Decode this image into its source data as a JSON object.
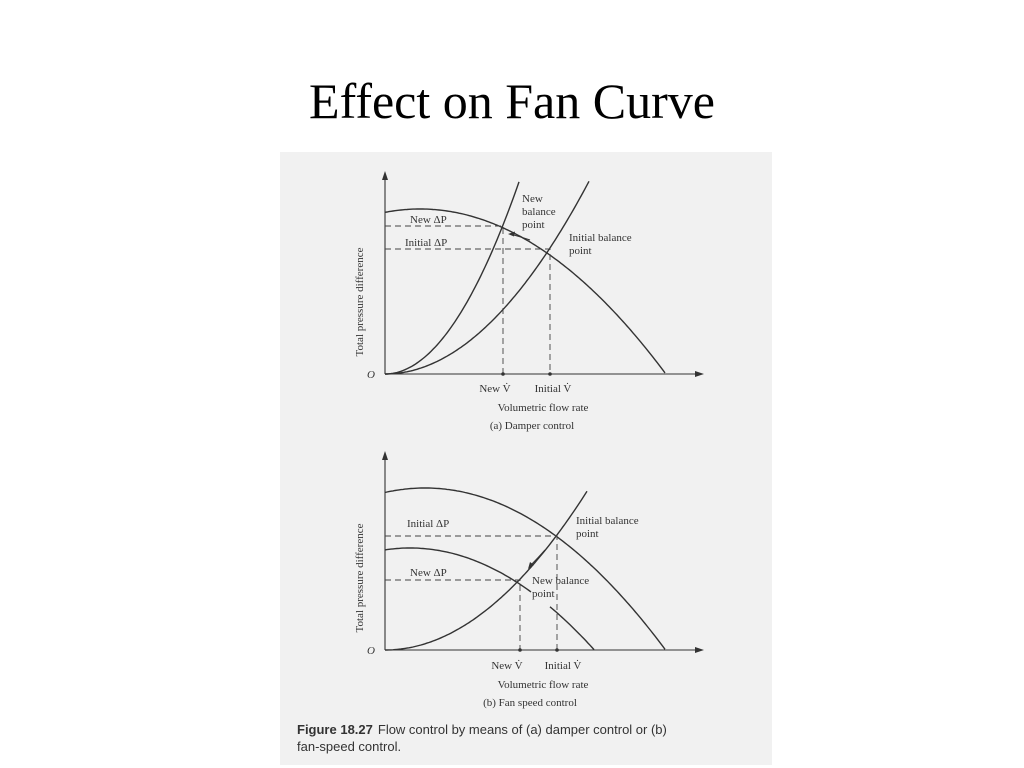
{
  "title": "Effect on Fan Curve",
  "figure": {
    "panel_a": {
      "y_axis_label": "Total pressure difference",
      "origin": "O",
      "new_dp": "New ΔP",
      "initial_dp": "Initial ΔP",
      "new_balance_point": [
        "New",
        "balance",
        "point"
      ],
      "initial_balance_point": [
        "Initial balance",
        "point"
      ],
      "new_v": "New V̇",
      "initial_v": "Initial V̇",
      "x_axis_label": "Volumetric flow rate",
      "caption": "(a) Damper control"
    },
    "panel_b": {
      "y_axis_label": "Total pressure difference",
      "origin": "O",
      "initial_dp": "Initial ΔP",
      "new_dp": "New ΔP",
      "initial_balance_point": [
        "Initial balance",
        "point"
      ],
      "new_balance_point": [
        "New balance",
        "point"
      ],
      "new_v": "New V̇",
      "initial_v": "Initial V̇",
      "x_axis_label": "Volumetric flow rate",
      "caption": "(b) Fan speed control"
    },
    "caption": {
      "label": "Figure 18.27",
      "lines": [
        "Flow control by means of (a) damper control or (b)",
        "fan-speed control."
      ]
    }
  }
}
